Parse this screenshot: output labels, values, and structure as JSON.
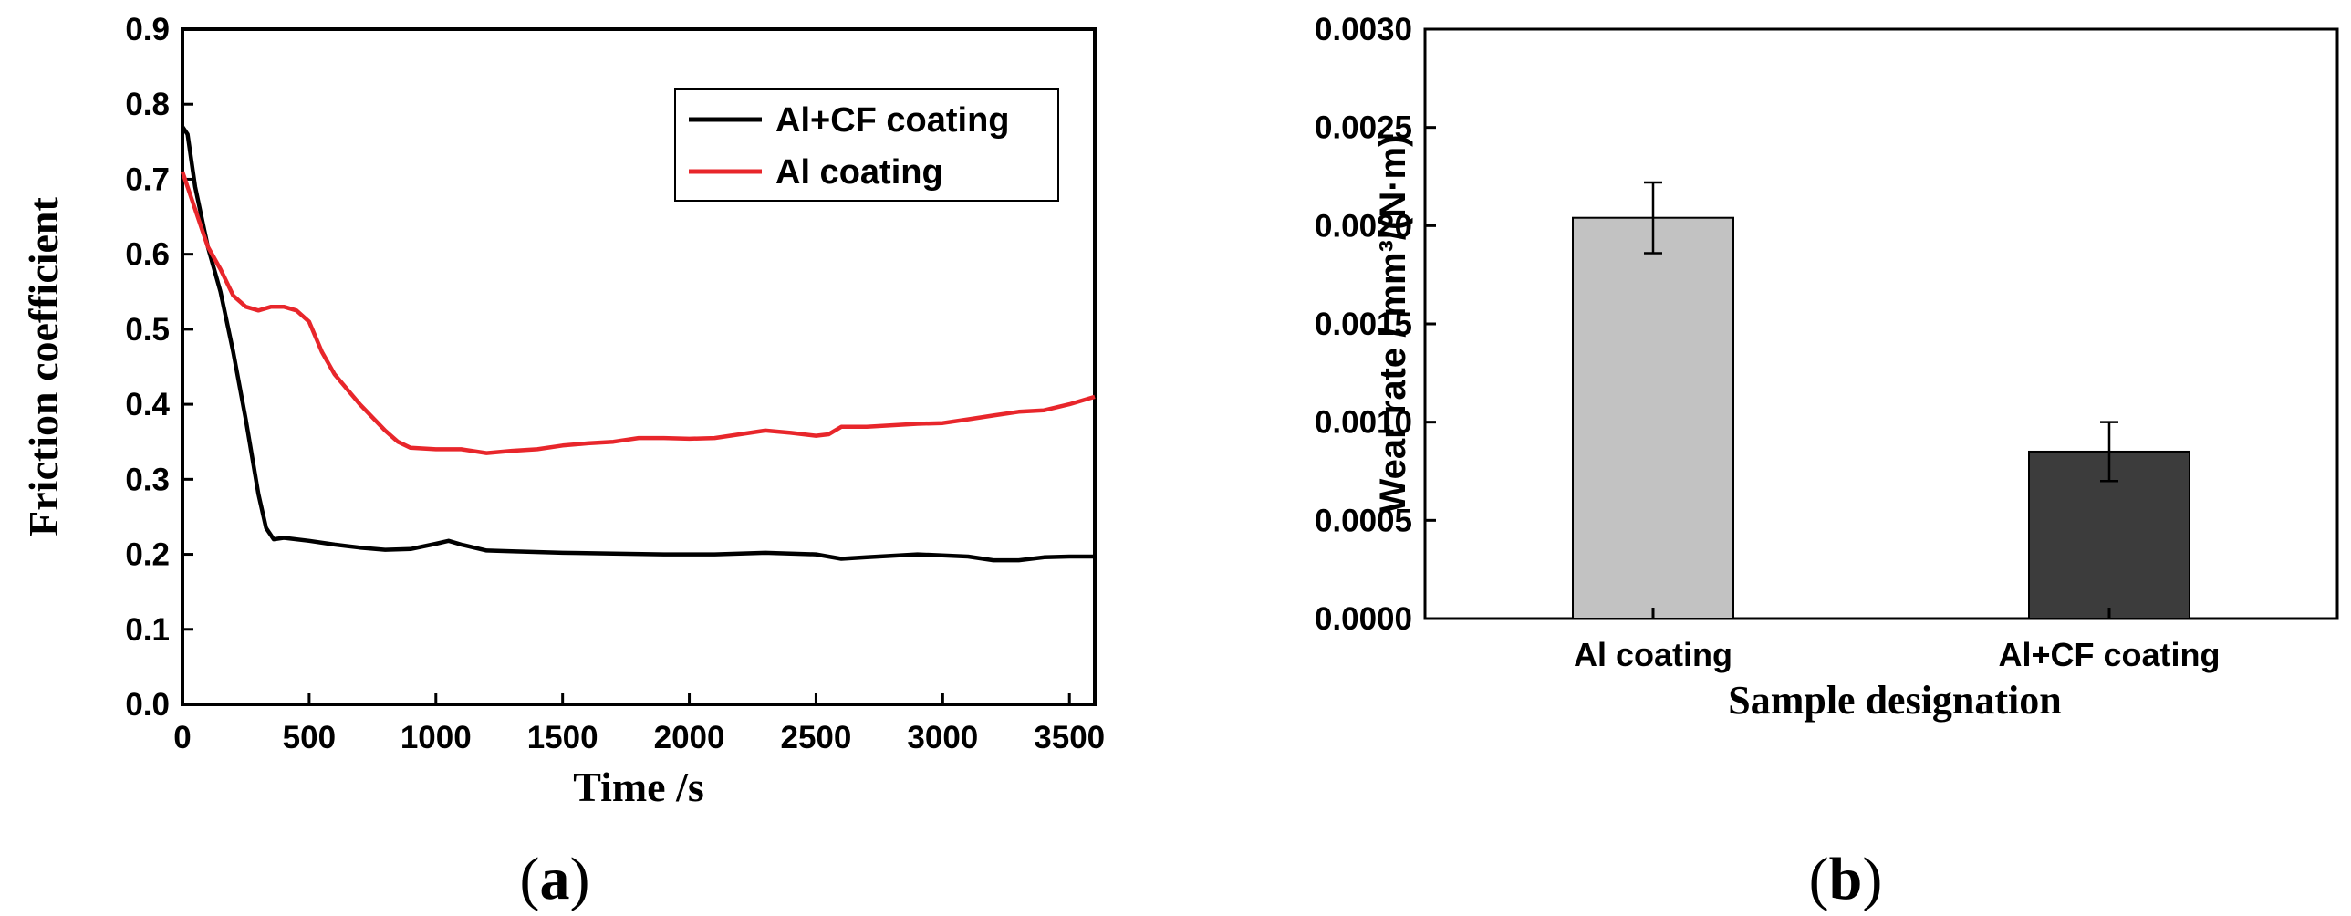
{
  "chart_data": [
    {
      "type": "line",
      "panel_label": "(a)",
      "panel_letter": "a",
      "xlabel": "Time /s",
      "ylabel": "Friction coefficient",
      "xlim": [
        0,
        3600
      ],
      "ylim": [
        0,
        0.9
      ],
      "xticks": [
        0,
        500,
        1000,
        1500,
        2000,
        2500,
        3000,
        3500
      ],
      "yticks": [
        0.0,
        0.1,
        0.2,
        0.3,
        0.4,
        0.5,
        0.6,
        0.7,
        0.8,
        0.9
      ],
      "legend_position": "top-right",
      "series": [
        {
          "name": "Al+CF coating",
          "color": "#000000",
          "x": [
            0,
            20,
            50,
            100,
            150,
            200,
            250,
            300,
            330,
            360,
            400,
            500,
            600,
            700,
            800,
            900,
            1000,
            1050,
            1100,
            1200,
            1300,
            1500,
            1700,
            1900,
            2100,
            2300,
            2500,
            2600,
            2700,
            2900,
            3100,
            3200,
            3300,
            3400,
            3500,
            3600
          ],
          "y": [
            0.77,
            0.76,
            0.69,
            0.61,
            0.55,
            0.47,
            0.38,
            0.28,
            0.235,
            0.22,
            0.222,
            0.218,
            0.213,
            0.209,
            0.206,
            0.207,
            0.214,
            0.218,
            0.213,
            0.205,
            0.204,
            0.202,
            0.201,
            0.2,
            0.2,
            0.202,
            0.2,
            0.194,
            0.196,
            0.2,
            0.197,
            0.192,
            0.192,
            0.196,
            0.197,
            0.197
          ]
        },
        {
          "name": "Al coating",
          "color": "#e8262b",
          "x": [
            0,
            50,
            100,
            150,
            200,
            250,
            300,
            350,
            400,
            450,
            500,
            550,
            600,
            700,
            800,
            850,
            900,
            1000,
            1100,
            1200,
            1300,
            1400,
            1500,
            1600,
            1700,
            1800,
            1900,
            2000,
            2100,
            2200,
            2300,
            2400,
            2500,
            2550,
            2600,
            2700,
            2800,
            2900,
            3000,
            3100,
            3200,
            3300,
            3400,
            3500,
            3600
          ],
          "y": [
            0.71,
            0.66,
            0.61,
            0.58,
            0.545,
            0.53,
            0.525,
            0.53,
            0.53,
            0.525,
            0.51,
            0.47,
            0.44,
            0.4,
            0.365,
            0.35,
            0.342,
            0.34,
            0.34,
            0.335,
            0.338,
            0.34,
            0.345,
            0.348,
            0.35,
            0.355,
            0.355,
            0.354,
            0.355,
            0.36,
            0.365,
            0.362,
            0.358,
            0.36,
            0.37,
            0.37,
            0.372,
            0.374,
            0.375,
            0.38,
            0.385,
            0.39,
            0.392,
            0.4,
            0.41
          ]
        }
      ]
    },
    {
      "type": "bar",
      "panel_label": "(b)",
      "panel_letter": "b",
      "xlabel": "Sample designation",
      "ylabel": "Wear rate / mm³/(N·m)",
      "ylim": [
        0,
        0.003
      ],
      "yticks": [
        "0.0000",
        "0.0005",
        "0.0010",
        "0.0015",
        "0.0020",
        "0.0025",
        "0.0030"
      ],
      "categories": [
        "Al coating",
        "Al+CF coating"
      ],
      "values": [
        0.00204,
        0.00085
      ],
      "errors": [
        0.00018,
        0.00015
      ],
      "colors": [
        "#c2c2c2",
        "#3c3c3c"
      ]
    }
  ]
}
